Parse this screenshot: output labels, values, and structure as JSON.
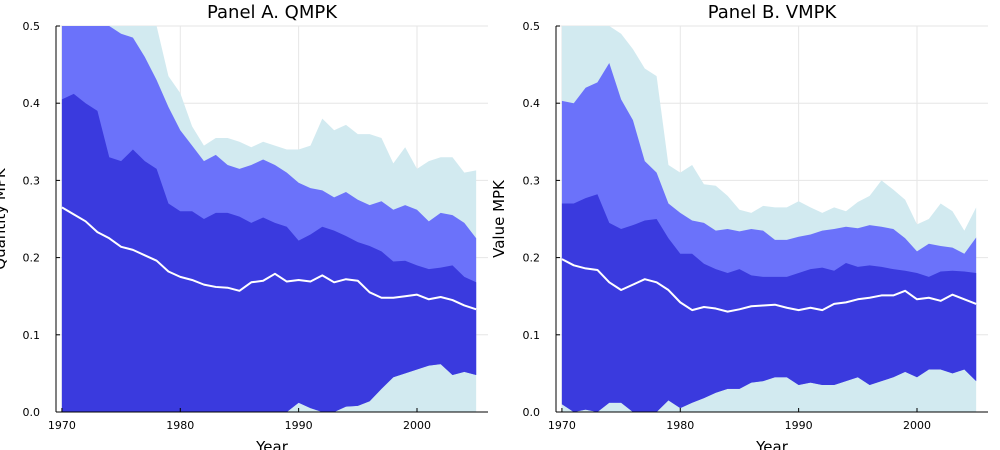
{
  "chart_data": [
    {
      "type": "area",
      "title": "Panel A. QMPK",
      "xlabel": "Year",
      "ylabel": "Quantity MPK",
      "xlim": [
        1969.5,
        2006
      ],
      "ylim": [
        0,
        0.5
      ],
      "xticks": [
        1970,
        1980,
        1990,
        2000
      ],
      "yticks": [
        0.0,
        0.1,
        0.2,
        0.3,
        0.4,
        0.5
      ],
      "grid": true,
      "legend": "none",
      "colors": {
        "outer": "#d2eaf0",
        "mid": "#6b72fa",
        "inner": "#3a3ade",
        "median": "#ffffff"
      },
      "x": [
        1970,
        1971,
        1972,
        1973,
        1974,
        1975,
        1976,
        1977,
        1978,
        1979,
        1980,
        1981,
        1982,
        1983,
        1984,
        1985,
        1986,
        1987,
        1988,
        1989,
        1990,
        1991,
        1992,
        1993,
        1994,
        1995,
        1996,
        1997,
        1998,
        1999,
        2000,
        2001,
        2002,
        2003,
        2004,
        2005
      ],
      "bands": [
        {
          "name": "outer",
          "low": [
            0,
            0,
            0,
            0,
            0,
            0,
            0,
            0,
            0,
            0,
            0,
            0,
            0,
            0,
            0,
            0,
            0,
            0,
            0,
            0,
            0,
            0,
            0,
            0,
            0,
            0,
            0,
            0,
            0,
            0,
            0,
            0,
            0,
            0,
            0,
            0
          ],
          "high": [
            0.5,
            0.5,
            0.5,
            0.5,
            0.5,
            0.5,
            0.5,
            0.5,
            0.5,
            0.435,
            0.413,
            0.37,
            0.345,
            0.355,
            0.355,
            0.35,
            0.343,
            0.35,
            0.345,
            0.34,
            0.34,
            0.345,
            0.38,
            0.365,
            0.372,
            0.36,
            0.36,
            0.355,
            0.322,
            0.343,
            0.315,
            0.325,
            0.33,
            0.33,
            0.31,
            0.313
          ]
        },
        {
          "name": "mid",
          "low": [
            0,
            0,
            0,
            0,
            0,
            0,
            0,
            0,
            0,
            0,
            0,
            0,
            0,
            0,
            0,
            0,
            0,
            0,
            0,
            0,
            0.012,
            0.005,
            0,
            0,
            0.007,
            0.008,
            0.014,
            0.03,
            0.045,
            0.05,
            0.055,
            0.06,
            0.062,
            0.048,
            0.052,
            0.048
          ],
          "high": [
            0.5,
            0.5,
            0.5,
            0.5,
            0.5,
            0.49,
            0.485,
            0.46,
            0.43,
            0.395,
            0.365,
            0.345,
            0.325,
            0.333,
            0.32,
            0.315,
            0.32,
            0.327,
            0.32,
            0.31,
            0.297,
            0.29,
            0.287,
            0.278,
            0.285,
            0.275,
            0.268,
            0.273,
            0.262,
            0.268,
            0.262,
            0.247,
            0.258,
            0.255,
            0.245,
            0.225
          ]
        },
        {
          "name": "inner",
          "low": [
            0,
            0,
            0,
            0,
            0,
            0,
            0,
            0,
            0,
            0,
            0,
            0,
            0,
            0,
            0,
            0,
            0,
            0,
            0,
            0,
            0.012,
            0.005,
            0,
            0,
            0.007,
            0.008,
            0.014,
            0.03,
            0.045,
            0.05,
            0.055,
            0.06,
            0.062,
            0.048,
            0.052,
            0.048
          ],
          "high": [
            0.405,
            0.412,
            0.4,
            0.39,
            0.33,
            0.325,
            0.34,
            0.325,
            0.315,
            0.27,
            0.26,
            0.26,
            0.25,
            0.258,
            0.258,
            0.253,
            0.245,
            0.252,
            0.245,
            0.24,
            0.222,
            0.23,
            0.24,
            0.235,
            0.228,
            0.22,
            0.215,
            0.208,
            0.195,
            0.196,
            0.19,
            0.185,
            0.187,
            0.19,
            0.175,
            0.168
          ]
        }
      ],
      "series": [
        {
          "name": "median",
          "values": [
            0.265,
            0.256,
            0.247,
            0.233,
            0.225,
            0.214,
            0.21,
            0.203,
            0.196,
            0.182,
            0.175,
            0.171,
            0.165,
            0.162,
            0.161,
            0.157,
            0.168,
            0.17,
            0.179,
            0.169,
            0.171,
            0.169,
            0.177,
            0.168,
            0.172,
            0.17,
            0.155,
            0.148,
            0.148,
            0.15,
            0.152,
            0.146,
            0.149,
            0.145,
            0.138,
            0.133
          ]
        }
      ]
    },
    {
      "type": "area",
      "title": "Panel B. VMPK",
      "xlabel": "Year",
      "ylabel": "Value MPK",
      "xlim": [
        1969.5,
        2006
      ],
      "ylim": [
        0,
        0.5
      ],
      "xticks": [
        1970,
        1980,
        1990,
        2000
      ],
      "yticks": [
        0.0,
        0.1,
        0.2,
        0.3,
        0.4,
        0.5
      ],
      "grid": true,
      "legend": "none",
      "colors": {
        "outer": "#d2eaf0",
        "mid": "#6b72fa",
        "inner": "#3a3ade",
        "median": "#ffffff"
      },
      "x": [
        1970,
        1971,
        1972,
        1973,
        1974,
        1975,
        1976,
        1977,
        1978,
        1979,
        1980,
        1981,
        1982,
        1983,
        1984,
        1985,
        1986,
        1987,
        1988,
        1989,
        1990,
        1991,
        1992,
        1993,
        1994,
        1995,
        1996,
        1997,
        1998,
        1999,
        2000,
        2001,
        2002,
        2003,
        2004,
        2005
      ],
      "bands": [
        {
          "name": "outer",
          "low": [
            0,
            0,
            0,
            0,
            0,
            0,
            0,
            0,
            0,
            0,
            0,
            0,
            0,
            0,
            0,
            0,
            0,
            0,
            0,
            0,
            0,
            0,
            0,
            0,
            0,
            0,
            0,
            0,
            0,
            0,
            0,
            0,
            0,
            0,
            0,
            0
          ],
          "high": [
            0.5,
            0.5,
            0.5,
            0.5,
            0.5,
            0.49,
            0.47,
            0.445,
            0.435,
            0.32,
            0.31,
            0.32,
            0.295,
            0.293,
            0.28,
            0.262,
            0.258,
            0.267,
            0.265,
            0.265,
            0.273,
            0.265,
            0.258,
            0.265,
            0.26,
            0.272,
            0.28,
            0.3,
            0.288,
            0.275,
            0.243,
            0.25,
            0.27,
            0.26,
            0.235,
            0.265
          ]
        },
        {
          "name": "mid",
          "low": [
            0.01,
            0,
            0.003,
            0,
            0.012,
            0.012,
            0,
            0,
            0,
            0.015,
            0.005,
            0.012,
            0.018,
            0.025,
            0.03,
            0.03,
            0.038,
            0.04,
            0.045,
            0.045,
            0.035,
            0.038,
            0.035,
            0.035,
            0.04,
            0.045,
            0.035,
            0.04,
            0.045,
            0.052,
            0.045,
            0.055,
            0.055,
            0.05,
            0.055,
            0.04
          ],
          "high": [
            0.403,
            0.4,
            0.42,
            0.427,
            0.452,
            0.405,
            0.378,
            0.325,
            0.31,
            0.27,
            0.258,
            0.248,
            0.245,
            0.235,
            0.237,
            0.234,
            0.237,
            0.235,
            0.223,
            0.223,
            0.227,
            0.23,
            0.235,
            0.237,
            0.24,
            0.238,
            0.242,
            0.24,
            0.237,
            0.225,
            0.208,
            0.218,
            0.215,
            0.213,
            0.205,
            0.226
          ]
        },
        {
          "name": "inner",
          "low": [
            0.01,
            0,
            0.003,
            0,
            0.012,
            0.012,
            0,
            0,
            0,
            0.015,
            0.005,
            0.012,
            0.018,
            0.025,
            0.03,
            0.03,
            0.038,
            0.04,
            0.045,
            0.045,
            0.035,
            0.038,
            0.035,
            0.035,
            0.04,
            0.045,
            0.035,
            0.04,
            0.045,
            0.052,
            0.045,
            0.055,
            0.055,
            0.05,
            0.055,
            0.04
          ],
          "high": [
            0.27,
            0.27,
            0.277,
            0.282,
            0.245,
            0.237,
            0.242,
            0.248,
            0.25,
            0.225,
            0.205,
            0.205,
            0.192,
            0.185,
            0.18,
            0.185,
            0.177,
            0.175,
            0.175,
            0.175,
            0.18,
            0.185,
            0.187,
            0.183,
            0.193,
            0.188,
            0.19,
            0.188,
            0.185,
            0.183,
            0.18,
            0.175,
            0.182,
            0.183,
            0.182,
            0.18
          ]
        }
      ],
      "series": [
        {
          "name": "median",
          "values": [
            0.198,
            0.19,
            0.186,
            0.184,
            0.168,
            0.158,
            0.165,
            0.172,
            0.168,
            0.158,
            0.142,
            0.132,
            0.136,
            0.134,
            0.13,
            0.133,
            0.137,
            0.138,
            0.139,
            0.135,
            0.132,
            0.135,
            0.132,
            0.14,
            0.142,
            0.146,
            0.148,
            0.151,
            0.151,
            0.157,
            0.146,
            0.148,
            0.144,
            0.152,
            0.146,
            0.14
          ]
        }
      ]
    }
  ]
}
